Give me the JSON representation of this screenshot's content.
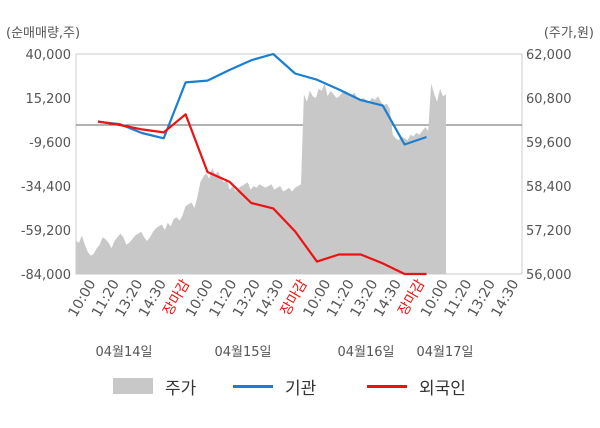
{
  "chart_data": {
    "type": "line",
    "left_axis_unit": "(순매매량,주)",
    "right_axis_unit": "(주가,원)",
    "left_ticks": [
      "40,000",
      "15,200",
      "-9,600",
      "-34,400",
      "-59,200",
      "-84,000"
    ],
    "right_ticks": [
      "62,000",
      "60,800",
      "59,600",
      "58,400",
      "57,200",
      "56,000"
    ],
    "left_range": [
      -84000,
      40000
    ],
    "right_range": [
      56000,
      62000
    ],
    "x_tick_labels": [
      "10:00",
      "11:20",
      "13:20",
      "14:30",
      "장마감",
      "10:00",
      "11:20",
      "13:20",
      "14:30",
      "장마감",
      "10:00",
      "11:20",
      "13:20",
      "14:30",
      "장마감",
      "10:00",
      "11:20",
      "13:20",
      "14:30"
    ],
    "date_labels": [
      "04월14일",
      "04월15일",
      "04월16일",
      "04월17일"
    ],
    "close_label": "장마감",
    "series": [
      {
        "name": "주가",
        "color": "#c8c8c8",
        "kind": "area",
        "axis": "right",
        "values": [
          56900,
          56850,
          57050,
          56800,
          56600,
          56500,
          56550,
          56700,
          56800,
          57000,
          56950,
          56850,
          56700,
          56900,
          57000,
          57100,
          57000,
          56800,
          56850,
          56950,
          57050,
          57100,
          57150,
          57000,
          56900,
          57000,
          57150,
          57250,
          57300,
          57350,
          57200,
          57400,
          57300,
          57500,
          57550,
          57450,
          57600,
          57850,
          57900,
          57950,
          57800,
          58100,
          58500,
          58650,
          58750,
          58600,
          58900,
          58700,
          58800,
          58600,
          58500,
          58550,
          58300,
          58400,
          58250,
          58350,
          58400,
          58450,
          58500,
          58300,
          58400,
          58350,
          58450,
          58400,
          58350,
          58400,
          58450,
          58300,
          58350,
          58400,
          58250,
          58300,
          58350,
          58250,
          58350,
          58400,
          58450,
          60900,
          60700,
          61000,
          60850,
          60800,
          61050,
          61000,
          61200,
          60850,
          61000,
          60900,
          60800,
          60850,
          60950,
          61000,
          60900,
          60850,
          60950,
          60800,
          60750,
          60800,
          60750,
          60700,
          60800,
          60750,
          60850,
          60700,
          60600,
          60650,
          60500,
          59800,
          59700,
          59650,
          59750,
          59700,
          59650,
          59800,
          59750,
          59850,
          59800,
          59900,
          60000,
          59900,
          61200,
          60900,
          60700,
          61050,
          60850,
          60900
        ]
      },
      {
        "name": "기관",
        "color": "#1a7fd4",
        "kind": "line",
        "axis": "left",
        "points": [
          [
            0,
            1800
          ],
          [
            1,
            500
          ],
          [
            2,
            -4500
          ],
          [
            3,
            -7500
          ],
          [
            4,
            24000
          ],
          [
            5,
            25000
          ],
          [
            6,
            31000
          ],
          [
            7,
            36500
          ],
          [
            8,
            40000
          ],
          [
            9,
            29000
          ],
          [
            10,
            25500
          ],
          [
            11,
            20000
          ],
          [
            12,
            14000
          ],
          [
            13,
            11000
          ],
          [
            14,
            -11000
          ],
          [
            15,
            -6800
          ]
        ]
      },
      {
        "name": "외국인",
        "color": "#ee1111",
        "kind": "line",
        "axis": "left",
        "points": [
          [
            0,
            2000
          ],
          [
            1,
            0
          ],
          [
            2,
            -2500
          ],
          [
            3,
            -4200
          ],
          [
            4,
            6000
          ],
          [
            5,
            -26500
          ],
          [
            6,
            -32000
          ],
          [
            7,
            -44000
          ],
          [
            8,
            -47000
          ],
          [
            9,
            -60000
          ],
          [
            10,
            -77000
          ],
          [
            11,
            -73000
          ],
          [
            12,
            -73000
          ],
          [
            13,
            -78000
          ],
          [
            14,
            -84000
          ],
          [
            15,
            -84000
          ]
        ]
      }
    ],
    "legend": [
      "주가",
      "기관",
      "외국인"
    ],
    "grid": false
  }
}
